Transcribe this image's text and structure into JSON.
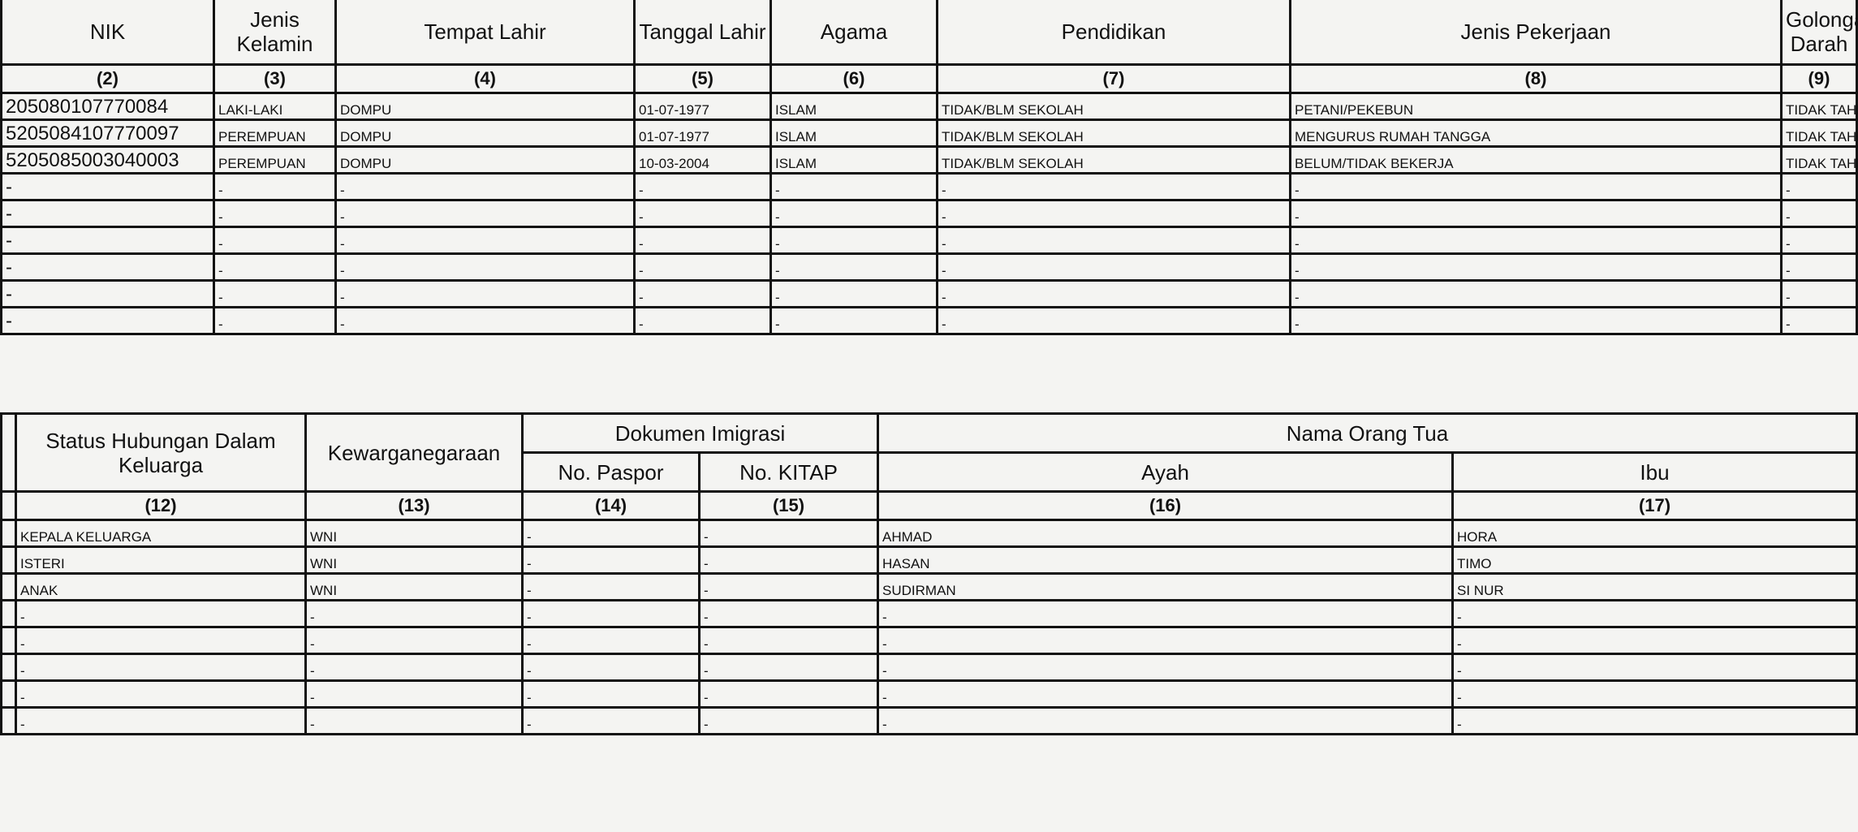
{
  "top_table": {
    "headers": [
      "NIK",
      "Jenis Kelamin",
      "Tempat Lahir",
      "Tanggal Lahir",
      "Agama",
      "Pendidikan",
      "Jenis Pekerjaan",
      "Golongan Darah"
    ],
    "numbers": [
      "(2)",
      "(3)",
      "(4)",
      "(5)",
      "(6)",
      "(7)",
      "(8)",
      "(9)"
    ],
    "rows": [
      [
        "205080107770084",
        "LAKI-LAKI",
        "DOMPU",
        "01-07-1977",
        "ISLAM",
        "TIDAK/BLM SEKOLAH",
        "PETANI/PEKEBUN",
        "TIDAK TAHU"
      ],
      [
        "5205084107770097",
        "PEREMPUAN",
        "DOMPU",
        "01-07-1977",
        "ISLAM",
        "TIDAK/BLM SEKOLAH",
        "MENGURUS RUMAH TANGGA",
        "TIDAK TAHU"
      ],
      [
        "5205085003040003",
        "PEREMPUAN",
        "DOMPU",
        "10-03-2004",
        "ISLAM",
        "TIDAK/BLM SEKOLAH",
        "BELUM/TIDAK BEKERJA",
        "TIDAK TAHU"
      ],
      [
        "-",
        "-",
        "-",
        "-",
        "-",
        "-",
        "-",
        "-"
      ],
      [
        "-",
        "-",
        "-",
        "-",
        "-",
        "-",
        "-",
        "-"
      ],
      [
        "-",
        "-",
        "-",
        "-",
        "-",
        "-",
        "-",
        "-"
      ],
      [
        "-",
        "-",
        "-",
        "-",
        "-",
        "-",
        "-",
        "-"
      ],
      [
        "-",
        "-",
        "-",
        "-",
        "-",
        "-",
        "-",
        "-"
      ],
      [
        "-",
        "-",
        "-",
        "-",
        "-",
        "-",
        "-",
        "-"
      ]
    ]
  },
  "bottom_table": {
    "headers": {
      "status": "Status Hubungan Dalam Keluarga",
      "kewarganegaraan": "Kewarganegaraan",
      "dokumen": "Dokumen Imigrasi",
      "paspor": "No. Paspor",
      "kitap": "No. KITAP",
      "orang_tua": "Nama Orang Tua",
      "ayah": "Ayah",
      "ibu": "Ibu"
    },
    "numbers": [
      "(12)",
      "(13)",
      "(14)",
      "(15)",
      "(16)",
      "(17)"
    ],
    "rows": [
      [
        "KEPALA KELUARGA",
        "WNI",
        "-",
        "-",
        "AHMAD",
        "HORA"
      ],
      [
        "ISTERI",
        "WNI",
        "-",
        "-",
        "HASAN",
        "TIMO"
      ],
      [
        "ANAK",
        "WNI",
        "-",
        "-",
        "SUDIRMAN",
        "SI NUR"
      ],
      [
        "-",
        "-",
        "-",
        "-",
        "-",
        "-"
      ],
      [
        "-",
        "-",
        "-",
        "-",
        "-",
        "-"
      ],
      [
        "-",
        "-",
        "-",
        "-",
        "-",
        "-"
      ],
      [
        "-",
        "-",
        "-",
        "-",
        "-",
        "-"
      ],
      [
        "-",
        "-",
        "-",
        "-",
        "-",
        "-"
      ]
    ]
  }
}
